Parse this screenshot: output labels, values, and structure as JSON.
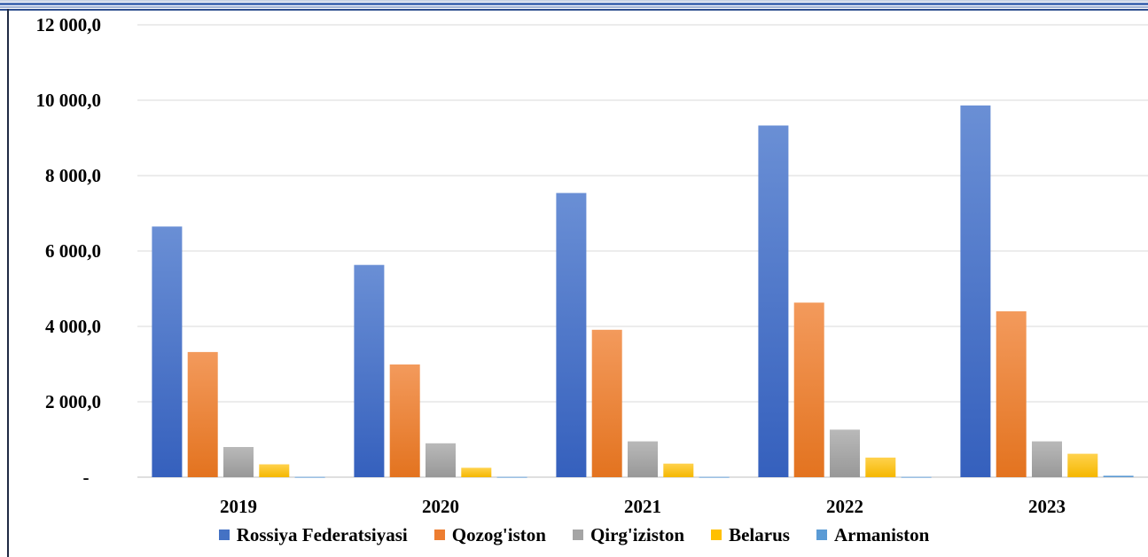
{
  "chart_data": {
    "type": "bar",
    "categories": [
      "2019",
      "2020",
      "2021",
      "2022",
      "2023"
    ],
    "series": [
      {
        "name": "Rossiya Federatsiyasi",
        "values": [
          6650,
          5630,
          7540,
          9330,
          9860
        ],
        "color": "#4472c4",
        "grad": [
          "#6a8fd5",
          "#3560bd"
        ]
      },
      {
        "name": "Qozog'iston",
        "values": [
          3320,
          2990,
          3910,
          4630,
          4400
        ],
        "color": "#ed7d31",
        "grad": [
          "#f39a5c",
          "#e3731f"
        ]
      },
      {
        "name": "Qirg'iziston",
        "values": [
          800,
          900,
          950,
          1260,
          950
        ],
        "color": "#a5a5a5",
        "grad": [
          "#b9b9b9",
          "#989898"
        ]
      },
      {
        "name": "Belarus",
        "values": [
          340,
          250,
          360,
          520,
          620
        ],
        "color": "#ffc000",
        "grad": [
          "#ffd24d",
          "#f5b700"
        ]
      },
      {
        "name": "Armaniston",
        "values": [
          10,
          10,
          10,
          10,
          40
        ],
        "color": "#5b9bd5",
        "grad": [
          "#7fb1df",
          "#4a8ccc"
        ]
      }
    ],
    "yticks": [
      "-",
      "2 000,0",
      "4 000,0",
      "6 000,0",
      "8 000,0",
      "10 000,0",
      "12 000,0"
    ],
    "ylim": [
      0,
      12000
    ],
    "grid": true,
    "legend_position": "bottom"
  }
}
